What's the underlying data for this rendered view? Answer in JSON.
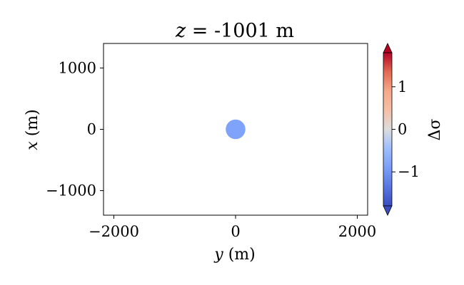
{
  "chart_data": {
    "type": "scatter",
    "title_var": "z",
    "title_eq": " = ",
    "title_value": "-1001 m",
    "xlabel_var": "y",
    "xlabel_unit": " (m)",
    "ylabel_var": "x",
    "ylabel_unit": " (m)",
    "xlim": [
      -2170,
      2170
    ],
    "ylim": [
      -1400,
      1400
    ],
    "x_ticks": [
      {
        "value": -2000,
        "label": "−2000"
      },
      {
        "value": 0,
        "label": "0"
      },
      {
        "value": 2000,
        "label": "2000"
      }
    ],
    "y_ticks": [
      {
        "value": 1000,
        "label": "1000"
      },
      {
        "value": 0,
        "label": "0"
      },
      {
        "value": -1000,
        "label": "−1000"
      }
    ],
    "points": [
      {
        "x": 0,
        "y": 0,
        "radius_m": 160,
        "delta_sigma": -0.85
      }
    ],
    "grid": false,
    "colorbar": {
      "label": "Δσ",
      "cmap": "coolwarm",
      "range": [
        -1.8,
        1.8
      ],
      "extend": "both",
      "ticks": [
        {
          "value": 1,
          "label": "1"
        },
        {
          "value": 0,
          "label": "0"
        },
        {
          "value": -1,
          "label": "−1"
        }
      ]
    }
  }
}
